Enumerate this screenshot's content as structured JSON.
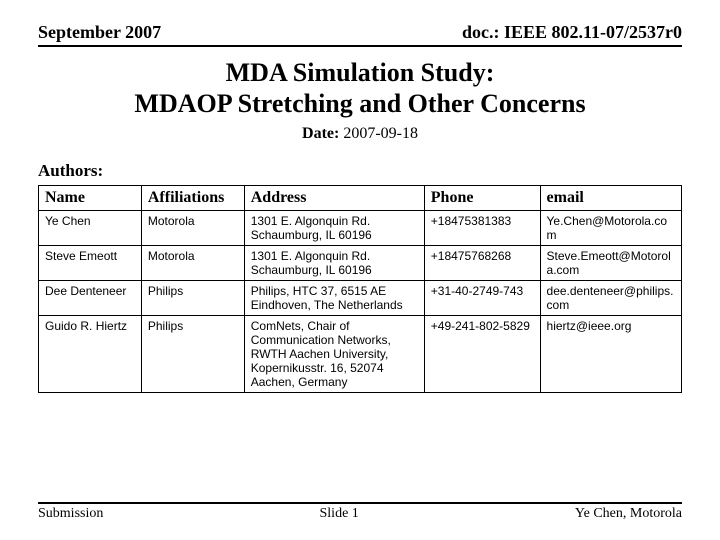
{
  "header": {
    "left": "September 2007",
    "right": "doc.: IEEE 802.11-07/2537r0"
  },
  "title": {
    "line1": "MDA Simulation Study:",
    "line2": "MDAOP Stretching and Other Concerns"
  },
  "date": {
    "label": "Date:",
    "value": "2007-09-18"
  },
  "authors_label": "Authors:",
  "table": {
    "columns": [
      "Name",
      "Affiliations",
      "Address",
      "Phone",
      "email"
    ],
    "rows": [
      [
        "Ye Chen",
        "Motorola",
        "1301 E. Algonquin Rd. Schaumburg, IL 60196",
        "+18475381383",
        "Ye.Chen@Motorola.com"
      ],
      [
        "Steve Emeott",
        "Motorola",
        "1301 E. Algonquin Rd. Schaumburg, IL 60196",
        "+18475768268",
        "Steve.Emeott@Motorola.com"
      ],
      [
        "Dee Denteneer",
        "Philips",
        "Philips, HTC 37, 6515 AE Eindhoven, The Netherlands",
        "+31-40-2749-743",
        "dee.denteneer@philips.com"
      ],
      [
        "Guido R. Hiertz",
        "Philips",
        "ComNets, Chair of Communication Networks, RWTH Aachen University, Kopernikusstr. 16, 52074 Aachen, Germany",
        "+49-241-802-5829",
        "hiertz@ieee.org"
      ]
    ]
  },
  "footer": {
    "left": "Submission",
    "center": "Slide 1",
    "right": "Ye Chen, Motorola"
  }
}
